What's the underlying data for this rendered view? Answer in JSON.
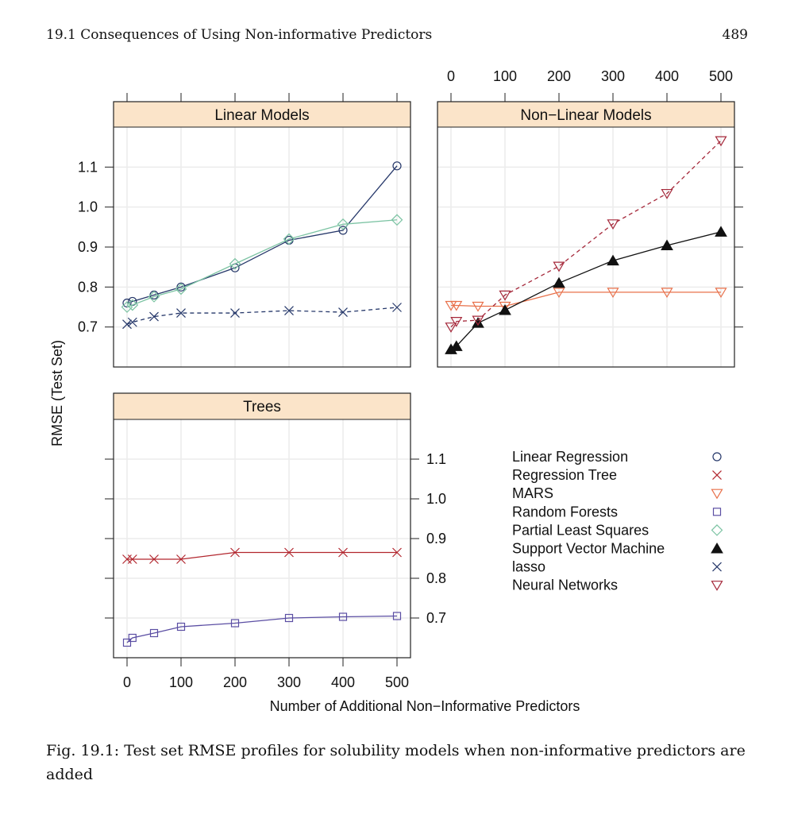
{
  "page": {
    "section_title": "19.1  Consequences of Using Non-informative Predictors",
    "page_number": "489"
  },
  "caption": "Fig. 19.1: Test set RMSE profiles for solubility models when non-informative predictors are added",
  "colors": {
    "strip": "#fbe4c9",
    "grid": "#ececec"
  },
  "chart_data": {
    "type": "line",
    "xlabel": "Number of Additional Non−Informative Predictors",
    "ylabel": "RMSE (Test Set)",
    "x": [
      0,
      10,
      50,
      100,
      200,
      300,
      400,
      500
    ],
    "xlim": [
      -25,
      525
    ],
    "ylim": [
      0.6,
      1.2
    ],
    "xticks": [
      "0",
      "100",
      "200",
      "300",
      "400",
      "500"
    ],
    "xtick_values": [
      0,
      100,
      200,
      300,
      400,
      500
    ],
    "yticks": [
      "0.7",
      "0.8",
      "0.9",
      "1.0",
      "1.1"
    ],
    "ytick_values": [
      0.7,
      0.8,
      0.9,
      1.0,
      1.1
    ],
    "grid": true,
    "legend_position": "bottom-right",
    "panels": [
      {
        "title": "Linear Models",
        "series": [
          "Linear Regression",
          "Partial Least Squares",
          "lasso"
        ]
      },
      {
        "title": "Non−Linear Models",
        "series": [
          "MARS",
          "Support Vector Machine",
          "Neural Networks"
        ]
      },
      {
        "title": "Trees",
        "series": [
          "Regression Tree",
          "Random Forests"
        ]
      }
    ],
    "series": [
      {
        "name": "Linear Regression",
        "marker": "circle",
        "color": "#26386a",
        "dash": false,
        "values": [
          0.76,
          0.764,
          0.78,
          0.8,
          0.848,
          0.917,
          0.942,
          1.103
        ]
      },
      {
        "name": "Regression Tree",
        "marker": "x",
        "color": "#b2262e",
        "dash": false,
        "values": [
          0.848,
          0.848,
          0.848,
          0.848,
          0.865,
          0.865,
          0.865,
          0.865
        ]
      },
      {
        "name": "MARS",
        "marker": "triangle-down",
        "color": "#e8704a",
        "dash": false,
        "values": [
          0.754,
          0.754,
          0.752,
          0.752,
          0.787,
          0.787,
          0.787,
          0.787
        ]
      },
      {
        "name": "Random Forests",
        "marker": "square",
        "color": "#5b4ea3",
        "dash": false,
        "values": [
          0.638,
          0.65,
          0.662,
          0.678,
          0.687,
          0.7,
          0.703,
          0.705
        ]
      },
      {
        "name": "Partial Least Squares",
        "marker": "diamond",
        "color": "#7cc3a3",
        "dash": false,
        "values": [
          0.75,
          0.755,
          0.776,
          0.795,
          0.858,
          0.92,
          0.957,
          0.968
        ]
      },
      {
        "name": "Support Vector Machine",
        "marker": "triangle-up-filled",
        "color": "#111111",
        "dash": false,
        "values": [
          0.644,
          0.652,
          0.71,
          0.742,
          0.81,
          0.866,
          0.904,
          0.938
        ]
      },
      {
        "name": "lasso",
        "marker": "x",
        "color": "#26386a",
        "dash": true,
        "values": [
          0.707,
          0.712,
          0.726,
          0.735,
          0.735,
          0.741,
          0.737,
          0.749
        ]
      },
      {
        "name": "Neural Networks",
        "marker": "triangle-down",
        "color": "#a5283a",
        "dash": true,
        "values": [
          0.7,
          0.714,
          0.717,
          0.78,
          0.852,
          0.958,
          1.034,
          1.166
        ]
      }
    ]
  }
}
